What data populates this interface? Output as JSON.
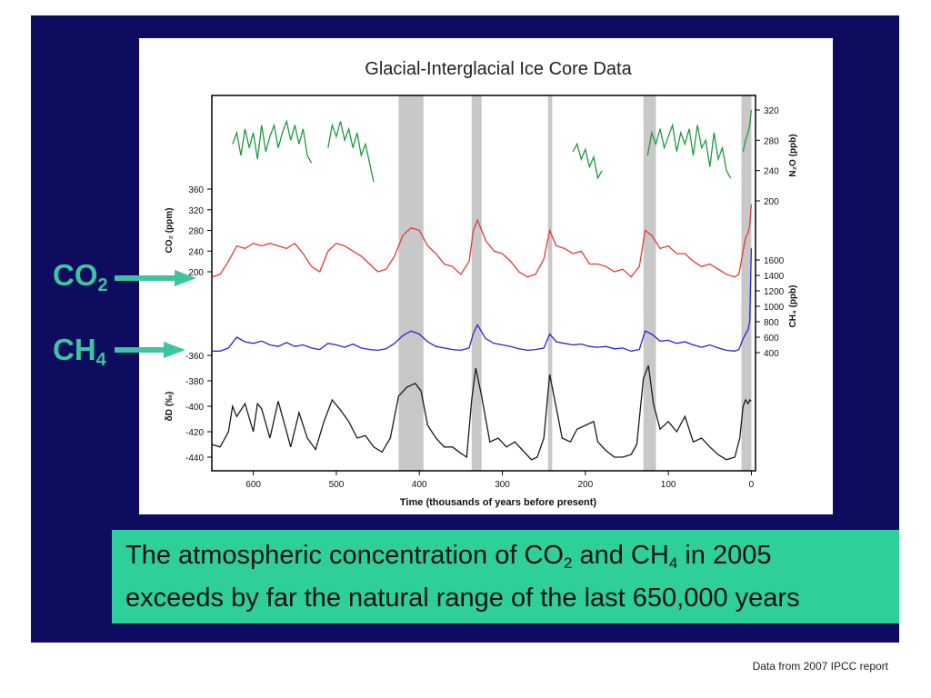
{
  "slide": {
    "background": "#0d0c5e",
    "co2_label": {
      "main": "CO",
      "sub": "2"
    },
    "ch4_label": {
      "main": "CH",
      "sub": "4"
    },
    "label_color": "#3ec4a0",
    "caption": {
      "part1": "The atmospheric concentration of CO",
      "sub1": "2",
      "part2": " and CH",
      "sub2": "4",
      "part3": " in 2005",
      "line2": "exceeds by far the natural range of the last 650,000 years"
    },
    "source": "Data from 2007 IPCC report"
  },
  "chart_data": {
    "type": "line",
    "title": "Glacial-Interglacial Ice Core Data",
    "xlabel": "Time (thousands of years before present)",
    "x_ticks": [
      600,
      500,
      400,
      300,
      200,
      100,
      0
    ],
    "xlim": [
      650,
      -5
    ],
    "interglacial_bands": [
      [
        425,
        395
      ],
      [
        337,
        325
      ],
      [
        245,
        240
      ],
      [
        130,
        115
      ],
      [
        12,
        0
      ]
    ],
    "band_color": "#c8c8c8",
    "series": [
      {
        "key": "n2o",
        "axis_label": "N₂O (ppb)",
        "axis_side": "right",
        "color": "#1f9a3c",
        "ticks": [
          200,
          240,
          280,
          320
        ],
        "segments": [
          [
            [
              625,
              275
            ],
            [
              620,
              290
            ],
            [
              615,
              260
            ],
            [
              610,
              295
            ],
            [
              605,
              270
            ],
            [
              600,
              290
            ],
            [
              595,
              255
            ],
            [
              590,
              300
            ],
            [
              585,
              265
            ],
            [
              580,
              285
            ],
            [
              575,
              300
            ],
            [
              570,
              270
            ],
            [
              565,
              290
            ],
            [
              560,
              305
            ],
            [
              555,
              280
            ],
            [
              550,
              300
            ],
            [
              545,
              275
            ],
            [
              540,
              295
            ],
            [
              535,
              260
            ],
            [
              530,
              250
            ]
          ],
          [
            [
              510,
              270
            ],
            [
              505,
              300
            ],
            [
              500,
              285
            ],
            [
              495,
              305
            ],
            [
              490,
              280
            ],
            [
              485,
              295
            ],
            [
              480,
              270
            ],
            [
              475,
              290
            ],
            [
              470,
              260
            ],
            [
              465,
              275
            ],
            [
              460,
              250
            ],
            [
              455,
              225
            ]
          ],
          [
            [
              215,
              265
            ],
            [
              210,
              275
            ],
            [
              205,
              255
            ],
            [
              200,
              268
            ],
            [
              195,
              245
            ],
            [
              190,
              258
            ],
            [
              185,
              230
            ],
            [
              180,
              240
            ]
          ],
          [
            [
              125,
              260
            ],
            [
              120,
              290
            ],
            [
              115,
              275
            ],
            [
              110,
              295
            ],
            [
              105,
              270
            ],
            [
              100,
              285
            ],
            [
              95,
              300
            ],
            [
              90,
              265
            ],
            [
              85,
              290
            ],
            [
              80,
              275
            ],
            [
              75,
              295
            ],
            [
              70,
              260
            ],
            [
              65,
              300
            ],
            [
              60,
              270
            ],
            [
              55,
              280
            ],
            [
              50,
              245
            ],
            [
              45,
              290
            ],
            [
              40,
              255
            ],
            [
              35,
              270
            ],
            [
              30,
              240
            ],
            [
              25,
              230
            ]
          ],
          [
            [
              10,
              265
            ],
            [
              7,
              280
            ],
            [
              4,
              290
            ],
            [
              2,
              300
            ],
            [
              0,
              320
            ]
          ]
        ]
      },
      {
        "key": "co2",
        "axis_label": "CO₂ (ppm)",
        "axis_side": "left",
        "color": "#e03b35",
        "ticks": [
          200,
          240,
          280,
          320,
          360
        ],
        "points": [
          [
            650,
            190
          ],
          [
            640,
            195
          ],
          [
            630,
            220
          ],
          [
            620,
            250
          ],
          [
            610,
            245
          ],
          [
            600,
            255
          ],
          [
            590,
            250
          ],
          [
            580,
            255
          ],
          [
            570,
            250
          ],
          [
            560,
            245
          ],
          [
            550,
            255
          ],
          [
            540,
            235
          ],
          [
            530,
            210
          ],
          [
            520,
            200
          ],
          [
            510,
            240
          ],
          [
            500,
            255
          ],
          [
            490,
            250
          ],
          [
            480,
            240
          ],
          [
            470,
            230
          ],
          [
            460,
            215
          ],
          [
            450,
            200
          ],
          [
            440,
            205
          ],
          [
            430,
            230
          ],
          [
            420,
            270
          ],
          [
            410,
            285
          ],
          [
            400,
            280
          ],
          [
            390,
            250
          ],
          [
            380,
            235
          ],
          [
            370,
            215
          ],
          [
            360,
            210
          ],
          [
            350,
            195
          ],
          [
            340,
            220
          ],
          [
            335,
            280
          ],
          [
            330,
            300
          ],
          [
            320,
            260
          ],
          [
            310,
            240
          ],
          [
            300,
            235
          ],
          [
            290,
            220
          ],
          [
            280,
            200
          ],
          [
            270,
            190
          ],
          [
            260,
            195
          ],
          [
            250,
            225
          ],
          [
            243,
            280
          ],
          [
            235,
            250
          ],
          [
            225,
            245
          ],
          [
            215,
            235
          ],
          [
            205,
            240
          ],
          [
            195,
            215
          ],
          [
            185,
            215
          ],
          [
            175,
            210
          ],
          [
            165,
            200
          ],
          [
            155,
            205
          ],
          [
            145,
            190
          ],
          [
            135,
            210
          ],
          [
            128,
            280
          ],
          [
            120,
            270
          ],
          [
            110,
            245
          ],
          [
            100,
            250
          ],
          [
            90,
            235
          ],
          [
            80,
            235
          ],
          [
            70,
            220
          ],
          [
            60,
            210
          ],
          [
            50,
            215
          ],
          [
            40,
            205
          ],
          [
            30,
            195
          ],
          [
            20,
            190
          ],
          [
            15,
            195
          ],
          [
            10,
            240
          ],
          [
            7,
            265
          ],
          [
            4,
            275
          ],
          [
            2,
            290
          ],
          [
            0,
            330
          ]
        ]
      },
      {
        "key": "ch4",
        "axis_label": "CH₄ (ppb)",
        "axis_side": "right",
        "color": "#2525d8",
        "ticks": [
          400,
          600,
          800,
          1000,
          1200,
          1400,
          1600
        ],
        "points": [
          [
            650,
            420
          ],
          [
            640,
            420
          ],
          [
            630,
            460
          ],
          [
            620,
            600
          ],
          [
            610,
            540
          ],
          [
            600,
            520
          ],
          [
            590,
            550
          ],
          [
            580,
            500
          ],
          [
            570,
            480
          ],
          [
            560,
            530
          ],
          [
            550,
            480
          ],
          [
            540,
            500
          ],
          [
            530,
            460
          ],
          [
            520,
            440
          ],
          [
            510,
            520
          ],
          [
            500,
            500
          ],
          [
            490,
            470
          ],
          [
            480,
            510
          ],
          [
            470,
            460
          ],
          [
            460,
            440
          ],
          [
            450,
            430
          ],
          [
            440,
            450
          ],
          [
            430,
            520
          ],
          [
            420,
            620
          ],
          [
            410,
            680
          ],
          [
            400,
            640
          ],
          [
            390,
            540
          ],
          [
            380,
            480
          ],
          [
            370,
            460
          ],
          [
            360,
            440
          ],
          [
            350,
            430
          ],
          [
            340,
            460
          ],
          [
            335,
            650
          ],
          [
            330,
            760
          ],
          [
            320,
            580
          ],
          [
            310,
            520
          ],
          [
            300,
            500
          ],
          [
            290,
            480
          ],
          [
            280,
            450
          ],
          [
            270,
            430
          ],
          [
            260,
            440
          ],
          [
            250,
            460
          ],
          [
            243,
            640
          ],
          [
            235,
            540
          ],
          [
            225,
            520
          ],
          [
            215,
            500
          ],
          [
            205,
            510
          ],
          [
            195,
            480
          ],
          [
            185,
            470
          ],
          [
            175,
            480
          ],
          [
            165,
            450
          ],
          [
            155,
            460
          ],
          [
            145,
            420
          ],
          [
            135,
            440
          ],
          [
            128,
            680
          ],
          [
            120,
            640
          ],
          [
            110,
            550
          ],
          [
            100,
            560
          ],
          [
            90,
            520
          ],
          [
            80,
            540
          ],
          [
            70,
            500
          ],
          [
            60,
            470
          ],
          [
            50,
            500
          ],
          [
            40,
            460
          ],
          [
            30,
            430
          ],
          [
            20,
            420
          ],
          [
            15,
            440
          ],
          [
            10,
            580
          ],
          [
            7,
            640
          ],
          [
            4,
            700
          ],
          [
            2,
            800
          ],
          [
            0,
            1750
          ]
        ]
      },
      {
        "key": "deuterium",
        "axis_label": "δD (‰)",
        "axis_side": "left",
        "color": "#1a1a1a",
        "ticks": [
          -440,
          -420,
          -400,
          -380,
          -360
        ],
        "points": [
          [
            650,
            -430
          ],
          [
            640,
            -432
          ],
          [
            630,
            -420
          ],
          [
            625,
            -400
          ],
          [
            620,
            -408
          ],
          [
            610,
            -398
          ],
          [
            600,
            -420
          ],
          [
            595,
            -398
          ],
          [
            590,
            -402
          ],
          [
            580,
            -425
          ],
          [
            570,
            -396
          ],
          [
            560,
            -420
          ],
          [
            555,
            -432
          ],
          [
            545,
            -405
          ],
          [
            535,
            -425
          ],
          [
            525,
            -434
          ],
          [
            515,
            -412
          ],
          [
            505,
            -395
          ],
          [
            495,
            -403
          ],
          [
            485,
            -412
          ],
          [
            475,
            -425
          ],
          [
            465,
            -423
          ],
          [
            455,
            -432
          ],
          [
            445,
            -436
          ],
          [
            435,
            -425
          ],
          [
            425,
            -392
          ],
          [
            415,
            -385
          ],
          [
            405,
            -382
          ],
          [
            398,
            -388
          ],
          [
            390,
            -415
          ],
          [
            380,
            -425
          ],
          [
            370,
            -432
          ],
          [
            360,
            -432
          ],
          [
            350,
            -437
          ],
          [
            343,
            -440
          ],
          [
            337,
            -395
          ],
          [
            332,
            -370
          ],
          [
            325,
            -392
          ],
          [
            315,
            -428
          ],
          [
            305,
            -425
          ],
          [
            295,
            -432
          ],
          [
            285,
            -428
          ],
          [
            275,
            -435
          ],
          [
            265,
            -442
          ],
          [
            258,
            -440
          ],
          [
            250,
            -425
          ],
          [
            243,
            -375
          ],
          [
            236,
            -398
          ],
          [
            228,
            -425
          ],
          [
            218,
            -428
          ],
          [
            210,
            -418
          ],
          [
            200,
            -415
          ],
          [
            190,
            -412
          ],
          [
            185,
            -428
          ],
          [
            175,
            -435
          ],
          [
            165,
            -440
          ],
          [
            155,
            -440
          ],
          [
            145,
            -438
          ],
          [
            138,
            -430
          ],
          [
            130,
            -378
          ],
          [
            124,
            -368
          ],
          [
            118,
            -398
          ],
          [
            110,
            -418
          ],
          [
            100,
            -412
          ],
          [
            90,
            -420
          ],
          [
            80,
            -408
          ],
          [
            70,
            -428
          ],
          [
            60,
            -425
          ],
          [
            50,
            -432
          ],
          [
            40,
            -438
          ],
          [
            30,
            -442
          ],
          [
            20,
            -440
          ],
          [
            14,
            -425
          ],
          [
            10,
            -400
          ],
          [
            7,
            -395
          ],
          [
            4,
            -398
          ],
          [
            2,
            -395
          ],
          [
            0,
            -396
          ]
        ]
      }
    ]
  }
}
